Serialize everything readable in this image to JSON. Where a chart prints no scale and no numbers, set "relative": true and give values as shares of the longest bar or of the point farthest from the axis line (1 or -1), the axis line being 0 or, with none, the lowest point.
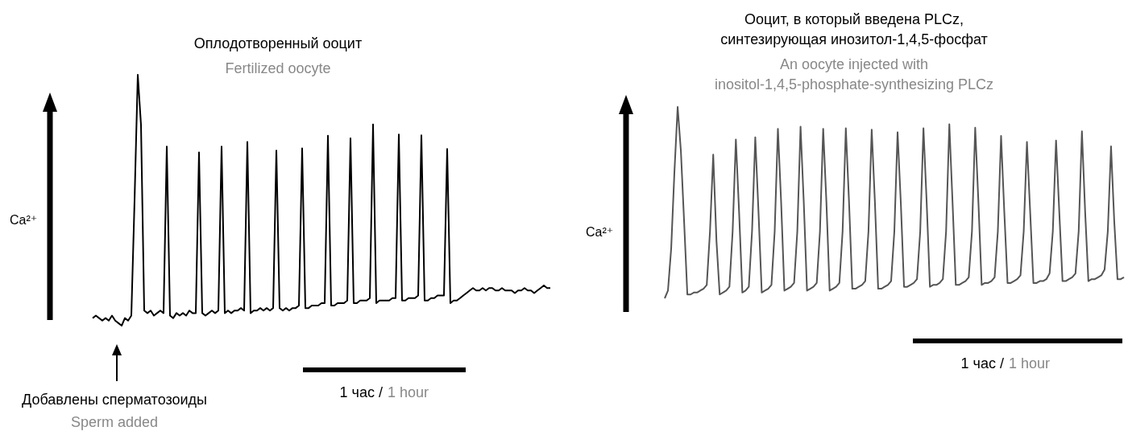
{
  "chart_data": [
    {
      "type": "line",
      "title": "Оплодотворенный ооцит",
      "subtitle": "Fertilized oocyte",
      "ylabel": "Ca²⁺",
      "relative": true,
      "marker": "none",
      "color": "#000000",
      "categories": [
        null,
        null,
        null,
        null,
        null,
        null,
        null,
        null,
        null,
        null,
        null,
        null,
        null,
        null,
        null,
        null,
        null,
        null,
        null,
        null,
        null,
        null,
        null,
        null,
        null,
        null,
        null,
        null,
        null,
        null,
        null,
        null,
        null,
        null,
        null,
        null,
        null,
        null,
        null,
        null,
        null,
        null,
        null,
        null,
        null,
        null,
        null,
        null,
        null,
        null,
        null,
        null,
        null,
        null,
        null,
        null,
        null,
        null,
        null,
        null,
        null,
        null,
        null,
        null,
        null,
        null,
        null,
        null,
        null,
        null,
        null,
        null,
        null,
        null,
        null,
        null,
        null,
        null,
        null,
        null,
        null,
        null,
        null,
        null,
        null,
        null,
        null,
        null,
        null,
        null,
        null,
        null,
        null,
        null,
        null,
        null,
        null,
        null,
        null,
        null,
        null,
        null,
        null,
        null,
        null,
        null,
        null,
        null,
        null,
        null,
        null,
        null,
        null,
        null,
        null,
        null,
        null,
        null,
        null,
        null,
        null,
        null,
        null,
        null,
        null,
        null,
        null,
        null,
        null,
        null,
        null,
        null,
        null,
        null,
        null,
        null,
        null,
        null,
        null,
        null,
        null,
        null,
        null
      ],
      "values": [
        0.03,
        0.04,
        0.03,
        0.02,
        0.03,
        0.02,
        0.04,
        0.02,
        0.01,
        0.0,
        0.03,
        0.02,
        0.04,
        0.5,
        1,
        0.8,
        0.06,
        0.05,
        0.06,
        0.04,
        0.05,
        0.06,
        0.05,
        0.714,
        0.04,
        0.03,
        0.05,
        0.04,
        0.05,
        0.04,
        0.06,
        0.05,
        0.05,
        0.691,
        0.05,
        0.04,
        0.05,
        0.06,
        0.05,
        0.06,
        0.714,
        0.05,
        0.06,
        0.05,
        0.06,
        0.06,
        0.07,
        0.06,
        0.732,
        0.05,
        0.06,
        0.06,
        0.07,
        0.06,
        0.07,
        0.06,
        0.07,
        0.698,
        0.07,
        0.06,
        0.07,
        0.06,
        0.07,
        0.07,
        0.08,
        0.707,
        0.07,
        0.07,
        0.08,
        0.08,
        0.08,
        0.09,
        0.09,
        0.757,
        0.08,
        0.08,
        0.09,
        0.09,
        0.09,
        0.1,
        0.747,
        0.09,
        0.09,
        0.1,
        0.1,
        0.1,
        0.11,
        0.802,
        0.09,
        0.1,
        0.1,
        0.1,
        0.1,
        0.11,
        0.11,
        0.762,
        0.1,
        0.1,
        0.11,
        0.11,
        0.11,
        0.12,
        0.759,
        0.1,
        0.1,
        0.11,
        0.11,
        0.12,
        0.12,
        0.12,
        0.704,
        0.09,
        0.1,
        0.1,
        0.11,
        0.12,
        0.13,
        0.14,
        0.15,
        0.14,
        0.14,
        0.15,
        0.14,
        0.15,
        0.15,
        0.14,
        0.14,
        0.15,
        0.14,
        0.14,
        0.14,
        0.13,
        0.14,
        0.14,
        0.15,
        0.14,
        0.14,
        0.13,
        0.14,
        0.15,
        0.16,
        0.15,
        0.15
      ],
      "annotations": [
        "Добавлены сперматозоиды",
        "Sperm added",
        "1 час /",
        "1 hour"
      ]
    },
    {
      "type": "line",
      "title": "Ооцит, в который введена PLCz,\nсинтезирующая инозитол-1,4,5-фосфат",
      "subtitle": "An oocyte injected with\ninositol-1,4,5-phosphate-synthesizing PLCz",
      "ylabel": "Ca²⁺",
      "relative": true,
      "marker": "none",
      "color": "#555555",
      "categories": [
        null,
        null,
        null,
        null,
        null,
        null,
        null,
        null,
        null,
        null,
        null,
        null,
        null,
        null,
        null,
        null,
        null,
        null,
        null,
        null,
        null,
        null,
        null,
        null,
        null,
        null,
        null,
        null,
        null,
        null,
        null,
        null,
        null,
        null,
        null,
        null,
        null,
        null,
        null,
        null,
        null,
        null,
        null,
        null,
        null,
        null,
        null,
        null,
        null,
        null,
        null,
        null,
        null,
        null,
        null,
        null,
        null,
        null,
        null,
        null,
        null,
        null,
        null,
        null,
        null,
        null,
        null,
        null,
        null,
        null,
        null,
        null,
        null,
        null,
        null,
        null,
        null,
        null,
        null,
        null,
        null,
        null,
        null,
        null,
        null,
        null,
        null,
        null,
        null,
        null,
        null,
        null,
        null,
        null,
        null,
        null,
        null,
        null,
        null,
        null,
        null,
        null,
        null,
        null,
        null,
        null,
        null,
        null,
        null,
        null,
        null,
        null,
        null,
        null,
        null,
        null,
        null,
        null,
        null,
        null,
        null,
        null,
        null,
        null,
        null,
        null,
        null,
        null,
        null,
        null,
        null,
        null,
        null,
        null,
        null,
        null,
        null,
        null,
        null,
        null,
        null,
        null,
        null
      ],
      "values": [
        0.0,
        0.04,
        0.26,
        0.66,
        1,
        0.77,
        0.4,
        0.02,
        0.02,
        0.03,
        0.03,
        0.04,
        0.05,
        0.07,
        0.35,
        0.751,
        0.3,
        0.02,
        0.03,
        0.04,
        0.06,
        0.35,
        0.83,
        0.45,
        0.03,
        0.04,
        0.06,
        0.35,
        0.841,
        0.45,
        0.03,
        0.04,
        0.05,
        0.07,
        0.35,
        0.886,
        0.5,
        0.04,
        0.05,
        0.06,
        0.08,
        0.35,
        0.897,
        0.5,
        0.04,
        0.05,
        0.06,
        0.08,
        0.35,
        0.886,
        0.5,
        0.04,
        0.05,
        0.06,
        0.08,
        0.35,
        0.889,
        0.5,
        0.05,
        0.05,
        0.06,
        0.07,
        0.09,
        0.35,
        0.881,
        0.5,
        0.05,
        0.05,
        0.06,
        0.07,
        0.09,
        0.35,
        0.868,
        0.5,
        0.06,
        0.06,
        0.07,
        0.08,
        0.1,
        0.35,
        0.889,
        0.5,
        0.06,
        0.07,
        0.07,
        0.08,
        0.1,
        0.35,
        0.91,
        0.5,
        0.07,
        0.07,
        0.08,
        0.09,
        0.11,
        0.35,
        0.892,
        0.5,
        0.07,
        0.08,
        0.08,
        0.09,
        0.11,
        0.35,
        0.849,
        0.45,
        0.08,
        0.08,
        0.09,
        0.1,
        0.12,
        0.35,
        0.817,
        0.45,
        0.08,
        0.08,
        0.09,
        0.09,
        0.1,
        0.13,
        0.35,
        0.825,
        0.45,
        0.09,
        0.09,
        0.1,
        0.11,
        0.13,
        0.35,
        0.873,
        0.45,
        0.09,
        0.1,
        0.1,
        0.11,
        0.12,
        0.15,
        0.35,
        0.794,
        0.4,
        0.1,
        0.1,
        0.11
      ],
      "annotations": [
        "1 час /",
        "1 hour"
      ]
    }
  ]
}
